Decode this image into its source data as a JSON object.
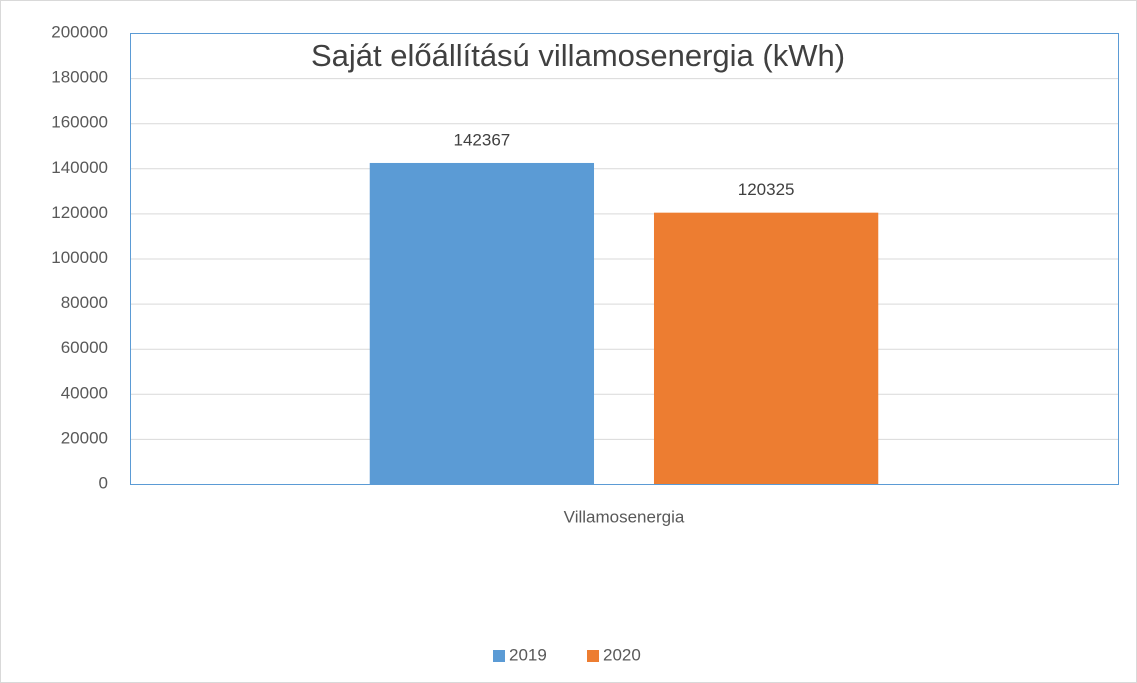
{
  "chart_data": {
    "type": "bar",
    "title": "Saját előállítású villamosenergia (kWh)",
    "categories": [
      "Villamosenergia"
    ],
    "series": [
      {
        "name": "2019",
        "color": "#5b9bd5",
        "values": [
          142367
        ]
      },
      {
        "name": "2020",
        "color": "#ed7d31",
        "values": [
          120325
        ]
      }
    ],
    "ylim": [
      0,
      200000
    ],
    "yticks": [
      0,
      20000,
      40000,
      60000,
      80000,
      100000,
      120000,
      140000,
      160000,
      180000,
      200000
    ],
    "grid": true,
    "legend": "bottom"
  }
}
